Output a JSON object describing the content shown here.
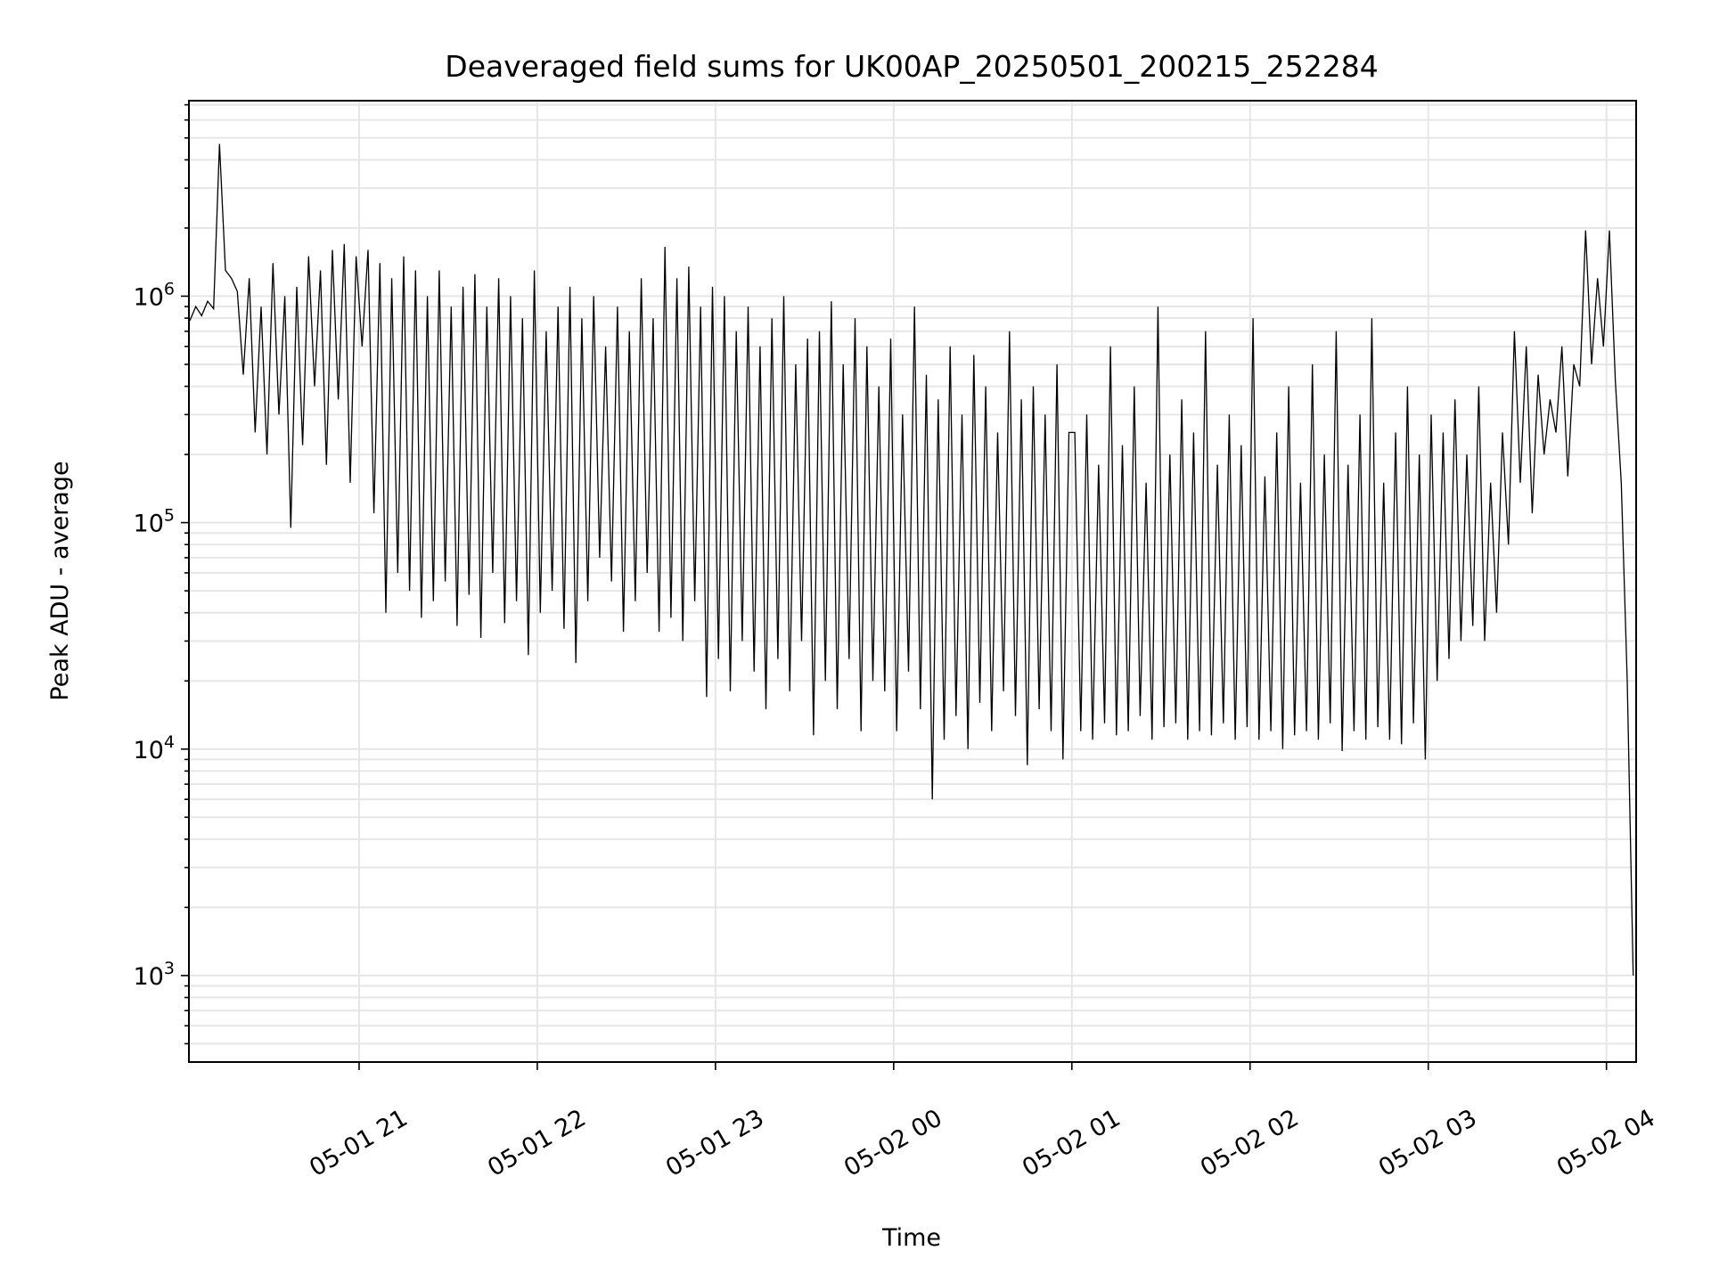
{
  "chart_data": {
    "type": "line",
    "title": "Deaveraged field sums for UK00AP_20250501_200215_252284",
    "xlabel": "Time",
    "ylabel": "Peak ADU - average",
    "yscale": "log",
    "ylim": [
      415,
      7300000
    ],
    "xlim_minutes_since_0501_2000": [
      2.7,
      490
    ],
    "grid": "major and minor, light gray",
    "legend": "none",
    "line_color": "#000000",
    "grid_color": "#e6e6e6",
    "x_ticks": [
      {
        "minute": 60,
        "label": "05-01 21"
      },
      {
        "minute": 120,
        "label": "05-01 22"
      },
      {
        "minute": 180,
        "label": "05-01 23"
      },
      {
        "minute": 240,
        "label": "05-02 00"
      },
      {
        "minute": 300,
        "label": "05-02 01"
      },
      {
        "minute": 360,
        "label": "05-02 02"
      },
      {
        "minute": 420,
        "label": "05-02 03"
      },
      {
        "minute": 480,
        "label": "05-02 04"
      }
    ],
    "y_ticks": [
      {
        "value": 1000,
        "base": "10",
        "exp": "3"
      },
      {
        "value": 10000,
        "base": "10",
        "exp": "4"
      },
      {
        "value": 100000,
        "base": "10",
        "exp": "5"
      },
      {
        "value": 1000000,
        "base": "10",
        "exp": "6"
      }
    ],
    "series_x_start_minute": 3,
    "series_x_step_minutes": 2,
    "values": [
      780000,
      900000,
      820000,
      950000,
      880000,
      4700000,
      1300000,
      1200000,
      1050000,
      450000,
      1200000,
      250000,
      900000,
      200000,
      1400000,
      300000,
      1000000,
      95000,
      1100000,
      220000,
      1500000,
      400000,
      1300000,
      180000,
      1600000,
      350000,
      1700000,
      150000,
      1500000,
      600000,
      1600000,
      110000,
      1400000,
      40000,
      1200000,
      60000,
      1500000,
      50000,
      1300000,
      38000,
      1000000,
      45000,
      1300000,
      55000,
      900000,
      35000,
      1100000,
      48000,
      1250000,
      31000,
      900000,
      60000,
      1200000,
      36000,
      1000000,
      45000,
      800000,
      26000,
      1300000,
      40000,
      700000,
      50000,
      900000,
      34000,
      1100000,
      24000,
      800000,
      45000,
      1000000,
      70000,
      600000,
      55000,
      900000,
      33000,
      700000,
      45000,
      1200000,
      60000,
      800000,
      33000,
      1650000,
      38000,
      1200000,
      30000,
      1350000,
      45000,
      900000,
      17000,
      1100000,
      25000,
      1000000,
      18000,
      700000,
      30000,
      900000,
      22000,
      600000,
      15000,
      800000,
      25000,
      1000000,
      18000,
      500000,
      30000,
      650000,
      11500,
      700000,
      20000,
      950000,
      15000,
      500000,
      25000,
      800000,
      12000,
      600000,
      20000,
      400000,
      18000,
      650000,
      12000,
      300000,
      22000,
      900000,
      15000,
      450000,
      6000,
      350000,
      11000,
      600000,
      14000,
      300000,
      10000,
      550000,
      16000,
      400000,
      12000,
      250000,
      18000,
      700000,
      14000,
      350000,
      8500,
      400000,
      15000,
      300000,
      12000,
      500000,
      9000,
      250000,
      250000,
      12000,
      300000,
      11000,
      180000,
      13000,
      600000,
      11500,
      220000,
      12000,
      400000,
      14000,
      150000,
      11000,
      900000,
      12500,
      200000,
      13000,
      350000,
      11000,
      250000,
      12000,
      700000,
      11500,
      180000,
      13000,
      300000,
      11000,
      220000,
      12500,
      800000,
      11000,
      160000,
      12000,
      250000,
      10000,
      400000,
      11500,
      150000,
      12000,
      500000,
      11000,
      200000,
      13000,
      700000,
      9800,
      180000,
      12000,
      300000,
      11000,
      800000,
      12500,
      150000,
      11000,
      250000,
      10500,
      400000,
      13000,
      200000,
      9000,
      300000,
      20000,
      250000,
      25000,
      350000,
      30000,
      200000,
      35000,
      400000,
      30000,
      150000,
      40000,
      250000,
      80000,
      700000,
      150000,
      600000,
      110000,
      450000,
      200000,
      350000,
      250000,
      600000,
      160000,
      500000,
      400000,
      1950000,
      500000,
      1200000,
      600000,
      1950000,
      420000,
      150000,
      20000,
      1000
    ]
  }
}
